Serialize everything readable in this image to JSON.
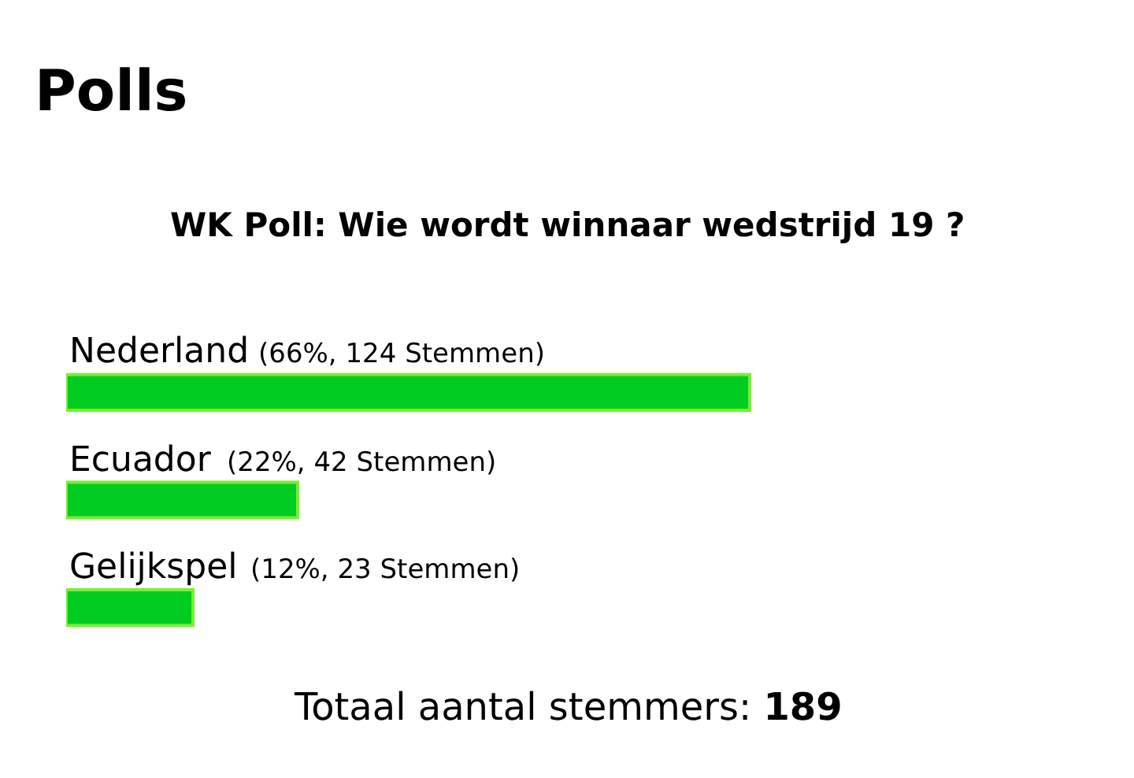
{
  "chart_data": {
    "type": "bar",
    "orientation": "horizontal",
    "title": "Polls",
    "subtitle": "WK Poll: Wie wordt winnaar wedstrijd 19 ?",
    "categories": [
      "Nederland",
      "Ecuador",
      "Gelijkspel"
    ],
    "values": [
      124,
      42,
      23
    ],
    "value_labels": [
      "(66%, 124 Stemmen)",
      "(22%, 42 Stemmen)",
      "(12%, 23 Stemmen)"
    ],
    "color": "#00cc22",
    "annotations": [
      "Totaal aantal stemmers: 189"
    ]
  }
}
